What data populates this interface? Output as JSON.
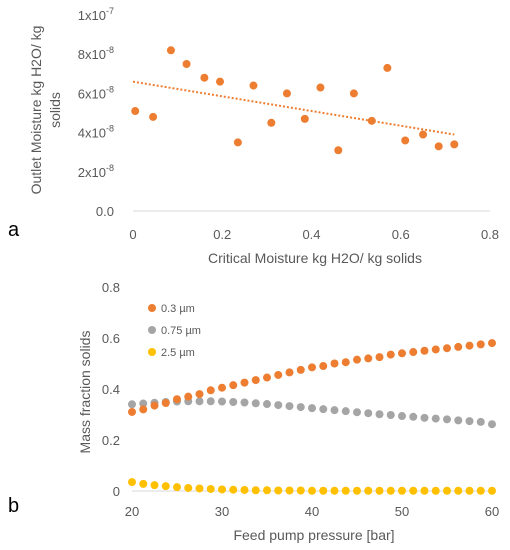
{
  "colors": {
    "orange": "#ED7D31",
    "gray": "#A5A5A5",
    "yellow": "#FFC000",
    "axis_text": "#595959",
    "axis_line": "#D9D9D9"
  },
  "chart_data": [
    {
      "type": "scatter",
      "panel_label": "a",
      "title": "",
      "xlabel": "Critical Moisture kg H2O/ kg solids",
      "ylabel": [
        "Outlet  Moisture kg H2O/ kg",
        "solids"
      ],
      "xlim": [
        0,
        0.8
      ],
      "ylim": [
        0,
        1e-07
      ],
      "x_ticks": [
        0,
        0.2,
        0.4,
        0.6,
        0.8
      ],
      "x_tick_labels": [
        "0",
        "0.2",
        "0.4",
        "0.6",
        "0.8"
      ],
      "y_ticks": [
        0,
        2e-08,
        4e-08,
        6e-08,
        8e-08,
        1e-07
      ],
      "y_tick_labels": [
        {
          "mantissa": "0.0",
          "exp": ""
        },
        {
          "mantissa": "2x10",
          "exp": "-8"
        },
        {
          "mantissa": "4x10",
          "exp": "-8"
        },
        {
          "mantissa": "6x10",
          "exp": "-8"
        },
        {
          "mantissa": "8x10",
          "exp": "-8"
        },
        {
          "mantissa": "1x10",
          "exp": "-7"
        }
      ],
      "grid": false,
      "series": [
        {
          "color": "#ED7D31",
          "x": [
            0.005,
            0.045,
            0.085,
            0.12,
            0.16,
            0.195,
            0.235,
            0.27,
            0.31,
            0.345,
            0.385,
            0.42,
            0.46,
            0.495,
            0.535,
            0.57,
            0.61,
            0.65,
            0.685,
            0.72
          ],
          "y": [
            5.1e-08,
            4.8e-08,
            8.2e-08,
            7.5e-08,
            6.8e-08,
            6.6e-08,
            3.5e-08,
            6.4e-08,
            4.5e-08,
            6e-08,
            4.7e-08,
            6.3e-08,
            3.1e-08,
            6e-08,
            4.6e-08,
            7.3e-08,
            3.6e-08,
            3.9e-08,
            3.3e-08,
            3.4e-08
          ]
        }
      ],
      "trendline": {
        "type": "linear",
        "color": "#ED7D31",
        "x": [
          0,
          0.72
        ],
        "y": [
          6.6e-08,
          3.9e-08
        ]
      }
    },
    {
      "type": "scatter",
      "panel_label": "b",
      "title": "",
      "xlabel": "Feed pump pressure [bar]",
      "ylabel": "Mass fraction solids",
      "xlim": [
        20,
        60
      ],
      "ylim": [
        0,
        0.8
      ],
      "x_ticks": [
        20,
        30,
        40,
        50,
        60
      ],
      "x_tick_labels": [
        "20",
        "30",
        "40",
        "50",
        "60"
      ],
      "y_ticks": [
        0,
        0.2,
        0.4,
        0.6,
        0.8
      ],
      "y_tick_labels": [
        "0",
        "0.2",
        "0.4",
        "0.6",
        "0.8"
      ],
      "grid": false,
      "legend_position": "top-left",
      "x": [
        20,
        21.25,
        22.5,
        23.75,
        25,
        26.25,
        27.5,
        28.75,
        30,
        31.25,
        32.5,
        33.75,
        35,
        36.25,
        37.5,
        38.75,
        40,
        41.25,
        42.5,
        43.75,
        45,
        46.25,
        47.5,
        48.75,
        50,
        51.25,
        52.5,
        53.75,
        55,
        56.25,
        57.5,
        58.75,
        60
      ],
      "series": [
        {
          "name": "0.3 µm",
          "color": "#ED7D31",
          "values": [
            0.31,
            0.32,
            0.335,
            0.345,
            0.36,
            0.37,
            0.38,
            0.395,
            0.405,
            0.415,
            0.425,
            0.435,
            0.445,
            0.455,
            0.465,
            0.475,
            0.485,
            0.49,
            0.5,
            0.505,
            0.515,
            0.52,
            0.525,
            0.535,
            0.54,
            0.545,
            0.55,
            0.555,
            0.56,
            0.565,
            0.57,
            0.575,
            0.58
          ]
        },
        {
          "name": "0.75 µm",
          "color": "#A5A5A5",
          "values": [
            0.34,
            0.343,
            0.346,
            0.349,
            0.351,
            0.352,
            0.352,
            0.352,
            0.351,
            0.349,
            0.347,
            0.344,
            0.341,
            0.337,
            0.333,
            0.329,
            0.325,
            0.321,
            0.317,
            0.313,
            0.309,
            0.305,
            0.301,
            0.298,
            0.294,
            0.291,
            0.287,
            0.284,
            0.281,
            0.277,
            0.274,
            0.271,
            0.262
          ]
        },
        {
          "name": "2.5 µm",
          "color": "#FFC000",
          "values": [
            0.035,
            0.028,
            0.023,
            0.019,
            0.015,
            0.012,
            0.01,
            0.008,
            0.006,
            0.005,
            0.004,
            0.003,
            0.003,
            0.002,
            0.002,
            0.002,
            0.001,
            0.001,
            0.001,
            0.001,
            0.001,
            0.001,
            0.001,
            0.001,
            0.001,
            0.001,
            0.001,
            0.001,
            0.001,
            0.001,
            0.001,
            0.001,
            0.001
          ]
        }
      ]
    }
  ]
}
